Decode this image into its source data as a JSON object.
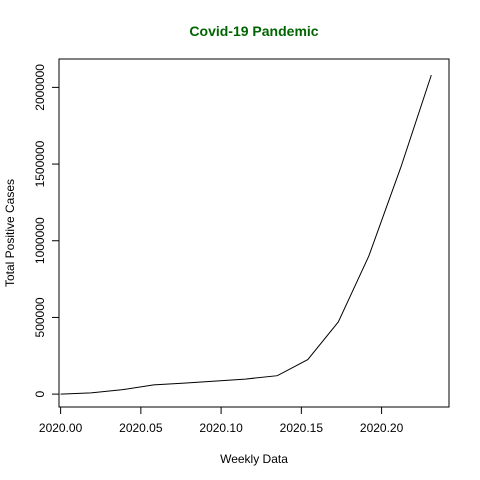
{
  "chart_data": {
    "type": "line",
    "title": "Covid-19 Pandemic",
    "title_color": "#006400",
    "xlabel": "Weekly Data",
    "ylabel": "Total Positive Cases",
    "line_color": "#000000",
    "xlim": [
      -0.001,
      0.242
    ],
    "ylim": [
      -84000,
      2185000
    ],
    "x_ticks": [
      {
        "value": 0.0,
        "label": "2020.00"
      },
      {
        "value": 0.05,
        "label": "2020.05"
      },
      {
        "value": 0.1,
        "label": "2020.10"
      },
      {
        "value": 0.15,
        "label": "2020.15"
      },
      {
        "value": 0.2,
        "label": "2020.20"
      }
    ],
    "y_ticks": [
      {
        "value": 0,
        "label": "0"
      },
      {
        "value": 500000,
        "label": "500000"
      },
      {
        "value": 1000000,
        "label": "1000000"
      },
      {
        "value": 1500000,
        "label": "1500000"
      },
      {
        "value": 2000000,
        "label": "2000000"
      }
    ],
    "series": [
      {
        "x": [
          0.0,
          0.019,
          0.038,
          0.058,
          0.077,
          0.096,
          0.115,
          0.135,
          0.154,
          0.173,
          0.192,
          0.212,
          0.231
        ],
        "values": [
          0,
          8000,
          28000,
          60000,
          72000,
          85000,
          98000,
          120000,
          225000,
          470000,
          900000,
          1480000,
          2080000
        ]
      }
    ]
  }
}
